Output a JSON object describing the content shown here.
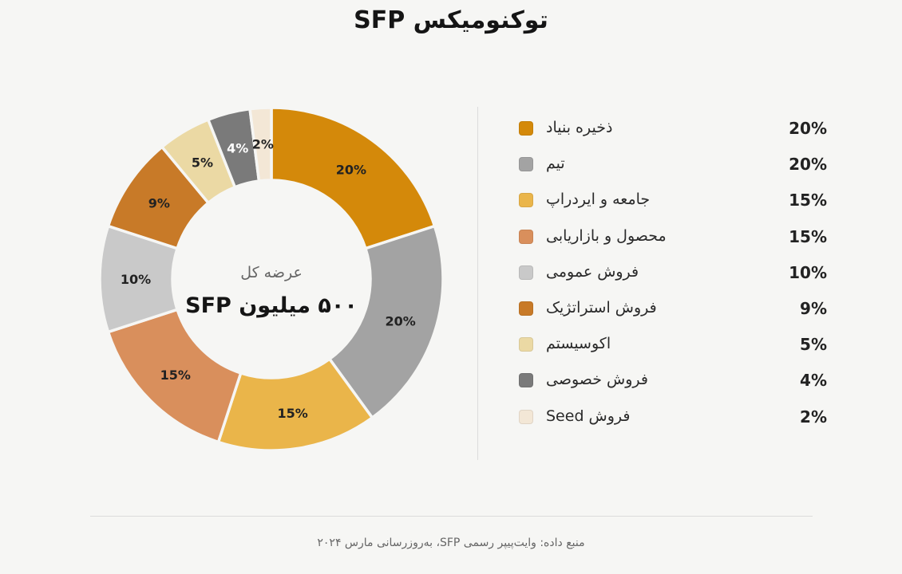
{
  "title": "توکنومیکس SFP",
  "center": {
    "label": "عرضه کل",
    "value": "۵۰۰ میلیون SFP"
  },
  "chart_data": {
    "type": "pie",
    "title": "توکنومیکس SFP",
    "unit": "%",
    "categories": [
      "ذخیره بنیاد",
      "تیم",
      "جامعه و ایردراپ",
      "محصول و بازاریابی",
      "فروش عمومی",
      "فروش استراتژیک",
      "اکوسیستم",
      "فروش خصوصی",
      "فروش Seed"
    ],
    "values": [
      20,
      20,
      15,
      15,
      10,
      9,
      5,
      4,
      2
    ],
    "value_labels": [
      "20%",
      "20%",
      "15%",
      "15%",
      "10%",
      "9%",
      "5%",
      "4%",
      "2%"
    ],
    "colors": [
      "#d4890a",
      "#a3a3a3",
      "#eab54a",
      "#d98f5c",
      "#c9c9c9",
      "#c87a28",
      "#ebd9a4",
      "#7a7a7a",
      "#f3e7d6"
    ],
    "label_colors": [
      "#222222",
      "#222222",
      "#222222",
      "#222222",
      "#222222",
      "#222222",
      "#222222",
      "#ffffff",
      "#222222"
    ],
    "legend_position": "right"
  },
  "footer": "منبع داده: وایت‌پیپر رسمی SFP، به‌روزرسانی مارس ۲۰۲۴"
}
